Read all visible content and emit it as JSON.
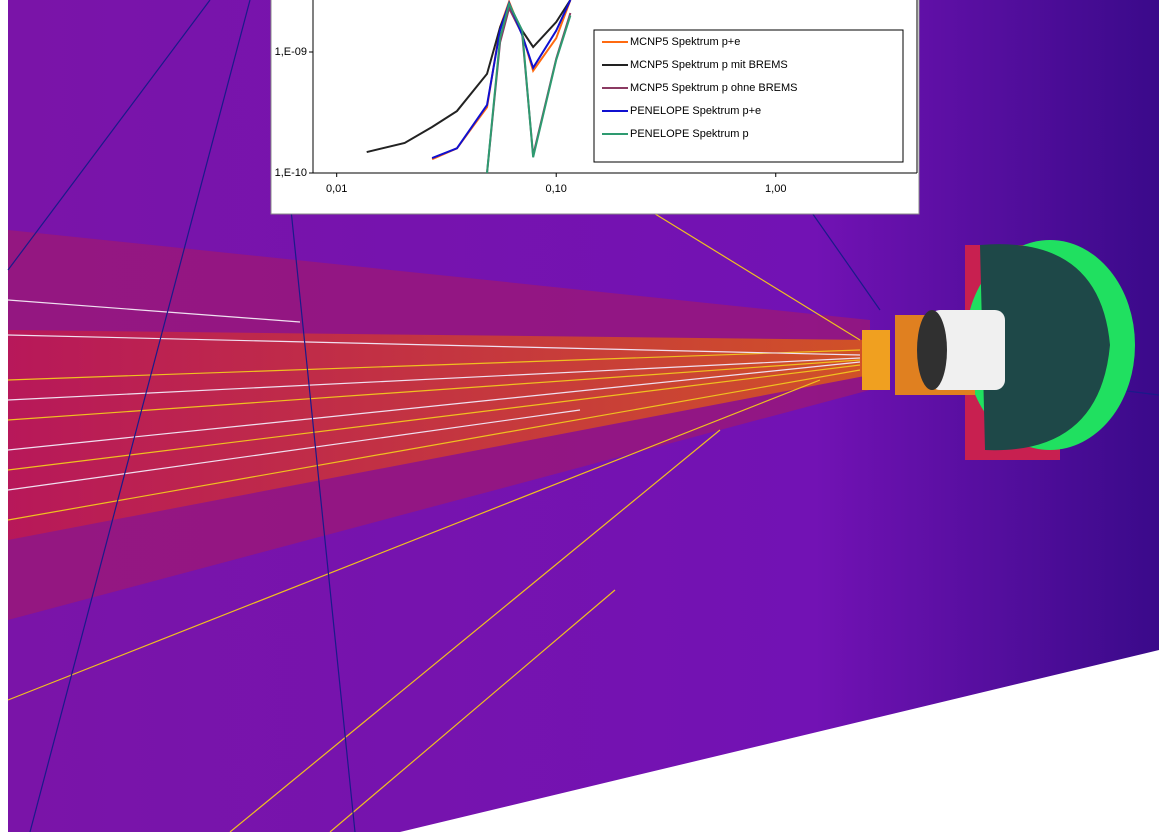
{
  "chart_data": {
    "type": "line",
    "xscale": "log",
    "yscale": "log",
    "x": [
      0.0137,
      0.0204,
      0.0272,
      0.0353,
      0.0484,
      0.0555,
      0.061,
      0.07,
      0.0785,
      0.1,
      0.116
    ],
    "series": [
      {
        "name": "MCNP5 Spektrum p+e",
        "color": "#ff6a10",
        "values": [
          null,
          null,
          1.3e-10,
          1.6e-10,
          3.5e-10,
          1.6e-09,
          2.6e-09,
          1.4e-09,
          7e-10,
          1.3e-09,
          2.69e-09
        ]
      },
      {
        "name": "MCNP5 Spektrum p mit BREMS",
        "color": "#222222",
        "values": [
          1.49e-10,
          1.77e-10,
          2.4e-10,
          3.25e-10,
          6.6e-10,
          1.6e-09,
          2.45e-09,
          1.5e-09,
          1.1e-09,
          1.77e-09,
          2.69e-09
        ]
      },
      {
        "name": "MCNP5 Spektrum p ohne BREMS",
        "color": "#8b3a62",
        "values": [
          null,
          null,
          null,
          null,
          1e-10,
          1.2e-09,
          2.3e-09,
          1.4e-09,
          1.4e-10,
          8.8e-10,
          2.1e-09
        ]
      },
      {
        "name": "PENELOPE Spektrum p+e",
        "color": "#1010d0",
        "values": [
          null,
          null,
          1.33e-10,
          1.6e-10,
          3.65e-10,
          1.52e-09,
          2.54e-09,
          1.38e-09,
          7.4e-10,
          1.5e-09,
          2.69e-09
        ]
      },
      {
        "name": "PENELOPE Spektrum p",
        "color": "#2e9a70",
        "values": [
          null,
          null,
          null,
          null,
          1e-10,
          1.3e-09,
          2.5e-09,
          1.5e-09,
          1.35e-10,
          8.6e-10,
          2e-09
        ]
      }
    ],
    "xlim": [
      0.0078,
      4.4
    ],
    "xticks": [
      {
        "value": 0.01,
        "label": "0,01"
      },
      {
        "value": 0.1,
        "label": "0,10"
      },
      {
        "value": 1,
        "label": "1,00"
      }
    ],
    "ylim": [
      1e-10,
      2.69e-09
    ],
    "yticks": [
      {
        "value": 1e-10,
        "label": "1,E-10"
      },
      {
        "value": 1e-09,
        "label": "1,E-09"
      }
    ]
  }
}
